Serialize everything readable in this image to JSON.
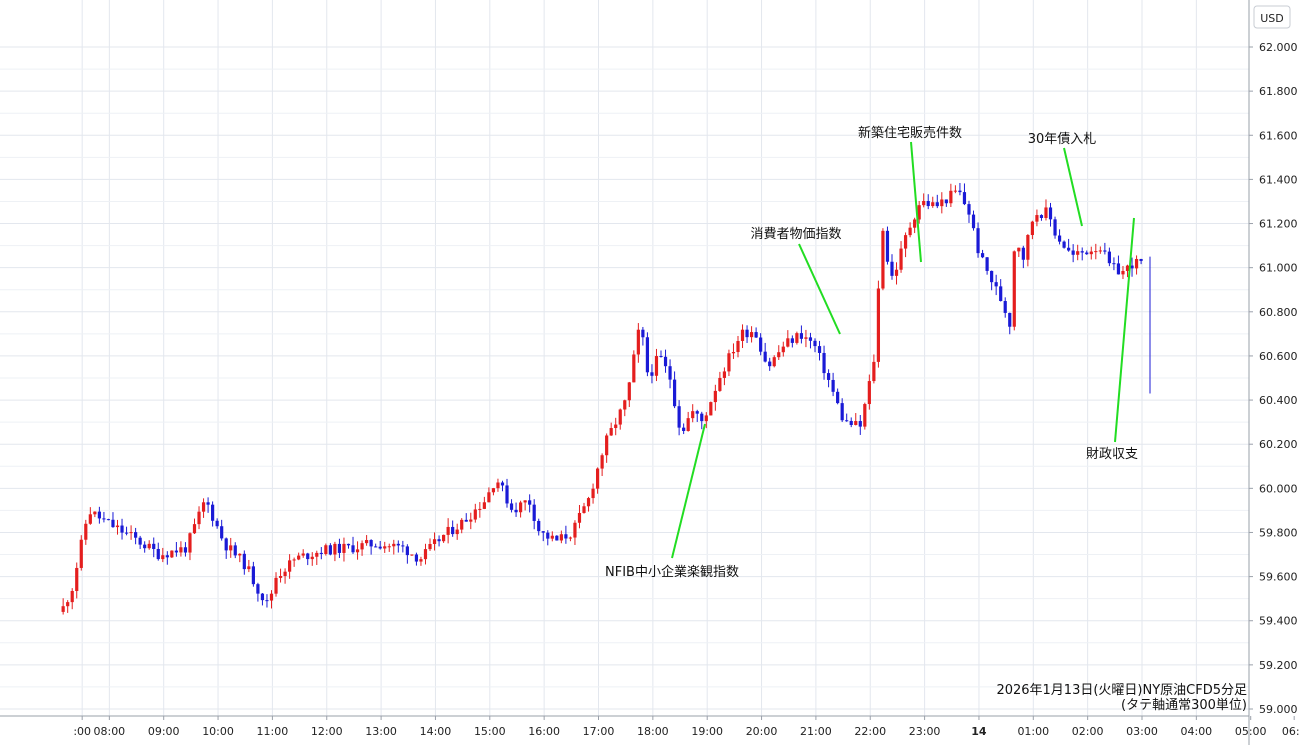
{
  "currency_label": "USD",
  "colors": {
    "up": "#e41e1e",
    "down": "#1a1ad6",
    "annotation_line": "#22dd22",
    "grid": "#e3e7ee",
    "axis": "#9aa0aa"
  },
  "caption": {
    "line1": "2026年1月13日(火曜日)NY原油CFD5分足",
    "line2": "(タテ軸通常300単位)"
  },
  "chart_data": {
    "type": "candlestick",
    "interval": "5 minutes",
    "ylim": [
      59.0,
      62.1
    ],
    "y_ticks": [
      "62.000",
      "61.800",
      "61.600",
      "61.400",
      "61.200",
      "61.000",
      "60.800",
      "60.600",
      "60.400",
      "60.200",
      "60.000",
      "59.800",
      "59.600",
      "59.400",
      "59.200",
      "59.000"
    ],
    "x_ticks": [
      {
        "label": ":00",
        "t": 0.5
      },
      {
        "label": "08:00",
        "t": 1
      },
      {
        "label": "09:00",
        "t": 2
      },
      {
        "label": "10:00",
        "t": 3
      },
      {
        "label": "11:00",
        "t": 4
      },
      {
        "label": "12:00",
        "t": 5
      },
      {
        "label": "13:00",
        "t": 6
      },
      {
        "label": "14:00",
        "t": 7
      },
      {
        "label": "15:00",
        "t": 8
      },
      {
        "label": "16:00",
        "t": 9
      },
      {
        "label": "17:00",
        "t": 10
      },
      {
        "label": "18:00",
        "t": 11
      },
      {
        "label": "19:00",
        "t": 12
      },
      {
        "label": "20:00",
        "t": 13
      },
      {
        "label": "21:00",
        "t": 14
      },
      {
        "label": "22:00",
        "t": 15
      },
      {
        "label": "23:00",
        "t": 16
      },
      {
        "label": "14",
        "t": 17
      },
      {
        "label": "01:00",
        "t": 18
      },
      {
        "label": "02:00",
        "t": 19
      },
      {
        "label": "03:00",
        "t": 20
      },
      {
        "label": "04:00",
        "t": 21
      },
      {
        "label": "05:00",
        "t": 22
      },
      {
        "label": "06:0",
        "t": 22.8
      }
    ],
    "candles_anchor_t": [
      [
        0.2,
        59.44
      ],
      [
        0.4,
        59.55
      ],
      [
        0.7,
        59.9
      ],
      [
        1.0,
        59.85
      ],
      [
        1.5,
        59.78
      ],
      [
        2.0,
        59.7
      ],
      [
        2.5,
        59.73
      ],
      [
        2.85,
        59.95
      ],
      [
        3.2,
        59.75
      ],
      [
        3.6,
        59.65
      ],
      [
        3.8,
        59.55
      ],
      [
        4.0,
        59.47
      ],
      [
        4.15,
        59.6
      ],
      [
        4.5,
        59.68
      ],
      [
        5.0,
        59.72
      ],
      [
        5.5,
        59.73
      ],
      [
        6.0,
        59.75
      ],
      [
        6.5,
        59.73
      ],
      [
        6.8,
        59.68
      ],
      [
        7.2,
        59.78
      ],
      [
        7.6,
        59.85
      ],
      [
        8.0,
        59.95
      ],
      [
        8.2,
        60.05
      ],
      [
        8.5,
        59.9
      ],
      [
        8.8,
        59.95
      ],
      [
        9.0,
        59.8
      ],
      [
        9.3,
        59.76
      ],
      [
        9.6,
        59.8
      ],
      [
        9.9,
        59.95
      ],
      [
        10.2,
        60.2
      ],
      [
        10.6,
        60.4
      ],
      [
        10.85,
        60.75
      ],
      [
        11.0,
        60.5
      ],
      [
        11.2,
        60.6
      ],
      [
        11.4,
        60.5
      ],
      [
        11.6,
        60.25
      ],
      [
        11.8,
        60.35
      ],
      [
        12.0,
        60.3
      ],
      [
        12.3,
        60.5
      ],
      [
        12.7,
        60.7
      ],
      [
        12.95,
        60.72
      ],
      [
        13.2,
        60.55
      ],
      [
        13.5,
        60.65
      ],
      [
        13.8,
        60.7
      ],
      [
        14.05,
        60.65
      ],
      [
        14.3,
        60.5
      ],
      [
        14.6,
        60.3
      ],
      [
        14.9,
        60.28
      ],
      [
        15.05,
        60.45
      ],
      [
        15.2,
        60.65
      ],
      [
        15.28,
        61.25
      ],
      [
        15.42,
        61.0
      ],
      [
        15.5,
        60.95
      ],
      [
        15.75,
        61.15
      ],
      [
        16.0,
        61.3
      ],
      [
        16.3,
        61.28
      ],
      [
        16.7,
        61.35
      ],
      [
        16.9,
        61.25
      ],
      [
        17.1,
        61.05
      ],
      [
        17.3,
        60.95
      ],
      [
        17.5,
        60.85
      ],
      [
        17.65,
        60.75
      ],
      [
        17.75,
        61.15
      ],
      [
        17.9,
        61.05
      ],
      [
        18.1,
        61.25
      ],
      [
        18.35,
        61.25
      ],
      [
        18.5,
        61.15
      ],
      [
        18.8,
        61.05
      ],
      [
        19.1,
        61.08
      ],
      [
        19.3,
        61.1
      ],
      [
        19.5,
        61.0
      ],
      [
        19.75,
        60.98
      ],
      [
        19.9,
        61.02
      ]
    ],
    "annotations": [
      {
        "label": "新築住宅販売件数"
      },
      {
        "label": "30年債入札"
      },
      {
        "label": "消費者物価指数"
      },
      {
        "label": "NFIB中小企業楽観指数"
      },
      {
        "label": "財政収支"
      }
    ]
  }
}
